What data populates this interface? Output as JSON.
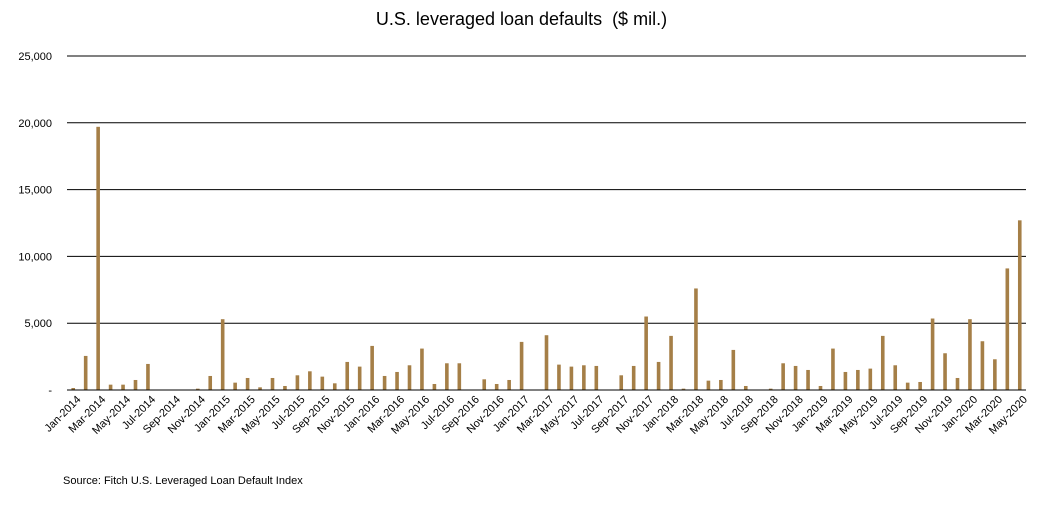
{
  "chart_data": {
    "type": "bar",
    "title": "U.S. leveraged loan defaults  ($ mil.)",
    "source": "Source: Fitch U.S. Leveraged Loan Default Index",
    "xlabel": "",
    "ylabel": "",
    "ylim": [
      0,
      25000
    ],
    "yticks": [
      0,
      5000,
      10000,
      15000,
      20000,
      25000
    ],
    "ytick_labels": [
      "-",
      "5,000",
      "10,000",
      "15,000",
      "20,000",
      "25,000"
    ],
    "grid": true,
    "bar_color": "#a57f47",
    "categories": [
      "Jan-2014",
      "Feb-2014",
      "Mar-2014",
      "Apr-2014",
      "May-2014",
      "Jun-2014",
      "Jul-2014",
      "Aug-2014",
      "Sep-2014",
      "Oct-2014",
      "Nov-2014",
      "Dec-2014",
      "Jan-2015",
      "Feb-2015",
      "Mar-2015",
      "Apr-2015",
      "May-2015",
      "Jun-2015",
      "Jul-2015",
      "Aug-2015",
      "Sep-2015",
      "Oct-2015",
      "Nov-2015",
      "Dec-2015",
      "Jan-2016",
      "Feb-2016",
      "Mar-2016",
      "Apr-2016",
      "May-2016",
      "Jun-2016",
      "Jul-2016",
      "Aug-2016",
      "Sep-2016",
      "Oct-2016",
      "Nov-2016",
      "Dec-2016",
      "Jan-2017",
      "Feb-2017",
      "Mar-2017",
      "Apr-2017",
      "May-2017",
      "Jun-2017",
      "Jul-2017",
      "Aug-2017",
      "Sep-2017",
      "Oct-2017",
      "Nov-2017",
      "Dec-2017",
      "Jan-2018",
      "Feb-2018",
      "Mar-2018",
      "Apr-2018",
      "May-2018",
      "Jun-2018",
      "Jul-2018",
      "Aug-2018",
      "Sep-2018",
      "Oct-2018",
      "Nov-2018",
      "Dec-2018",
      "Jan-2019",
      "Feb-2019",
      "Mar-2019",
      "Apr-2019",
      "May-2019",
      "Jun-2019",
      "Jul-2019",
      "Aug-2019",
      "Sep-2019",
      "Oct-2019",
      "Nov-2019",
      "Dec-2019",
      "Jan-2020",
      "Feb-2020",
      "Mar-2020",
      "Apr-2020",
      "May-2020"
    ],
    "labeled_categories": [
      "Jan-2014",
      "Mar-2014",
      "May-2014",
      "Jul-2014",
      "Sep-2014",
      "Nov-2014",
      "Jan-2015",
      "Mar-2015",
      "May-2015",
      "Jul-2015",
      "Sep-2015",
      "Nov-2015",
      "Jan-2016",
      "Mar-2016",
      "May-2016",
      "Jul-2016",
      "Sep-2016",
      "Nov-2016",
      "Jan-2017",
      "Mar-2017",
      "May-2017",
      "Jul-2017",
      "Sep-2017",
      "Nov-2017",
      "Jan-2018",
      "Mar-2018",
      "May-2018",
      "Jul-2018",
      "Sep-2018",
      "Nov-2018",
      "Jan-2019",
      "Mar-2019",
      "May-2019",
      "Jul-2019",
      "Sep-2019",
      "Nov-2019",
      "Jan-2020",
      "Mar-2020",
      "May-2020"
    ],
    "values": [
      150,
      2550,
      19700,
      400,
      400,
      750,
      1950,
      0,
      0,
      0,
      100,
      1050,
      5300,
      550,
      900,
      200,
      900,
      300,
      1100,
      1400,
      1000,
      500,
      2100,
      1750,
      3300,
      1050,
      1350,
      1850,
      3100,
      450,
      2000,
      2000,
      0,
      800,
      450,
      750,
      3600,
      0,
      4100,
      1900,
      1750,
      1850,
      1800,
      0,
      1100,
      1800,
      5500,
      2100,
      4050,
      100,
      7600,
      700,
      750,
      3000,
      300,
      0,
      100,
      2000,
      1800,
      1500,
      300,
      3100,
      1350,
      1500,
      1600,
      4050,
      1850,
      550,
      600,
      5350,
      2750,
      900,
      5300,
      3650,
      2300,
      9100,
      12700
    ]
  }
}
